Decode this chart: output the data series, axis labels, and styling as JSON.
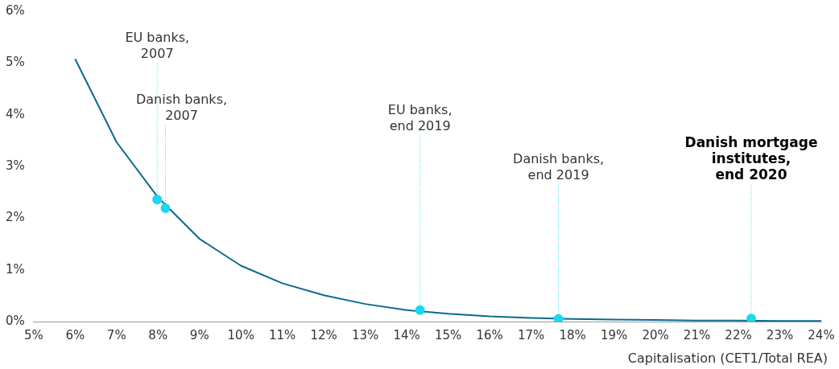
{
  "chart_data": {
    "type": "line",
    "xlabel": "Capitalisation (CET1/Total REA)",
    "series": [
      {
        "marker": "none",
        "color": "#0b6a8c",
        "x": [
          6,
          7,
          8,
          9,
          10,
          11,
          12,
          13,
          14,
          15,
          16,
          17,
          18,
          19,
          20,
          21,
          22,
          23,
          24
        ],
        "values": [
          5.08,
          3.47,
          2.4,
          1.6,
          1.08,
          0.74,
          0.51,
          0.34,
          0.22,
          0.15,
          0.1,
          0.07,
          0.05,
          0.04,
          0.03,
          0.02,
          0.02,
          0.01,
          0.01
        ]
      },
      {
        "type": "scatter",
        "marker": "circle",
        "color": "#19d8f0",
        "x": [
          7.98,
          8.18,
          14.32,
          17.66,
          22.31
        ],
        "values": [
          2.36,
          2.19,
          0.22,
          0.05,
          0.06
        ]
      }
    ],
    "annotations": [
      {
        "text": "EU banks,\n2007",
        "x": 7.98,
        "y": 2.36
      },
      {
        "text": "Danish banks,\n2007",
        "x": 8.18,
        "y": 2.19
      },
      {
        "text": "EU banks,\nend 2019",
        "x": 14.32,
        "y": 0.22
      },
      {
        "text": "Danish banks,\nend 2019",
        "x": 17.66,
        "y": 0.05
      },
      {
        "text": "Danish mortgage\ninstitutes,\nend 2020",
        "x": 22.31,
        "y": 0.06
      }
    ],
    "xlim": [
      5,
      24
    ],
    "xticks": [
      {
        "value": 5,
        "label": "5%"
      },
      {
        "value": 6,
        "label": "6%"
      },
      {
        "value": 7,
        "label": "7%"
      },
      {
        "value": 8,
        "label": "8%"
      },
      {
        "value": 9,
        "label": "9%"
      },
      {
        "value": 10,
        "label": "10%"
      },
      {
        "value": 11,
        "label": "11%"
      },
      {
        "value": 12,
        "label": "12%"
      },
      {
        "value": 13,
        "label": "13%"
      },
      {
        "value": 14,
        "label": "14%"
      },
      {
        "value": 15,
        "label": "15%"
      },
      {
        "value": 16,
        "label": "16%"
      },
      {
        "value": 17,
        "label": "17%"
      },
      {
        "value": 18,
        "label": "18%"
      },
      {
        "value": 19,
        "label": "19%"
      },
      {
        "value": 20,
        "label": "20%"
      },
      {
        "value": 21,
        "label": "21%"
      },
      {
        "value": 22,
        "label": "22%"
      },
      {
        "value": 23,
        "label": "23%"
      },
      {
        "value": 24,
        "label": "24%"
      }
    ],
    "ylim": [
      0,
      6
    ],
    "yticks": [
      {
        "value": 0,
        "label": "0%"
      },
      {
        "value": 1,
        "label": "1%"
      },
      {
        "value": 2,
        "label": "2%"
      },
      {
        "value": 3,
        "label": "3%"
      },
      {
        "value": 4,
        "label": "4%"
      },
      {
        "value": 5,
        "label": "5%"
      },
      {
        "value": 6,
        "label": "6%"
      }
    ],
    "grid": false,
    "legend": false,
    "line_style": "solid"
  }
}
